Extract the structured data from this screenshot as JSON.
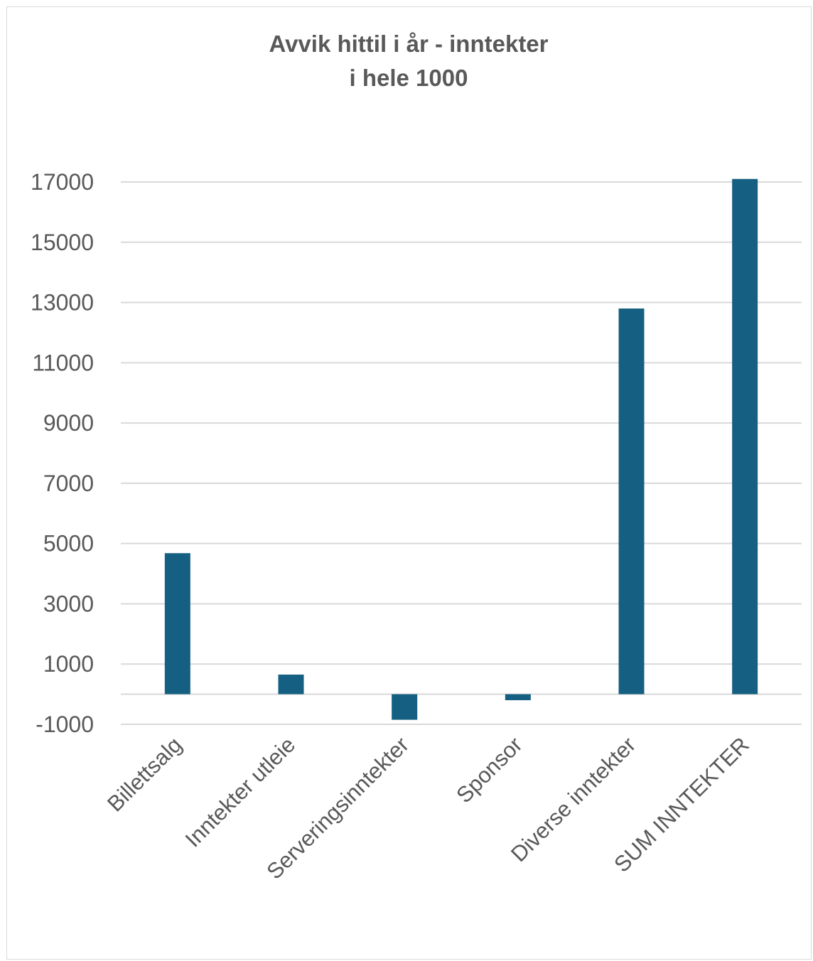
{
  "chart_data": {
    "type": "bar",
    "title_lines": [
      "Avvik hittil i år - inntekter",
      "i hele 1000"
    ],
    "categories": [
      "Billettsalg",
      "Inntekter utleie",
      "Serveringsinntekter",
      "Sponsor",
      "Diverse inntekter",
      "SUM INNTEKTER"
    ],
    "values": [
      4680,
      650,
      -850,
      -200,
      12800,
      17100
    ],
    "yticks": [
      "17000",
      "15000",
      "13000",
      "11000",
      "9000",
      "7000",
      "5000",
      "3000",
      "1000",
      "-1000"
    ],
    "ylim": [
      -1000,
      17000
    ],
    "grid": true,
    "bar_color": "#156082"
  }
}
